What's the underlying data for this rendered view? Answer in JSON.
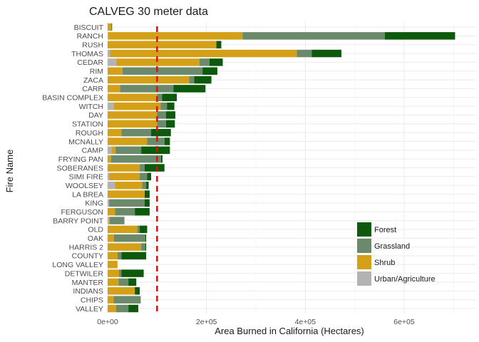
{
  "chart_data": {
    "type": "bar",
    "orientation": "horizontal",
    "stacked": true,
    "title": "CALVEG 30 meter data",
    "xlabel": "Area Burned in California (Hectares)",
    "ylabel": "Fire Name",
    "xlim": [
      0,
      740000
    ],
    "xticks": [
      0,
      200000,
      400000,
      600000
    ],
    "xtick_labels": [
      "0e+00",
      "2e+05",
      "4e+05",
      "6e+05"
    ],
    "reference_line": {
      "x": 100000,
      "color": "#ff0000",
      "style": "dashed"
    },
    "legend_position": "bottom-right",
    "grid": true,
    "categories": [
      "BISCUIT",
      "RANCH",
      "RUSH",
      "THOMAS",
      "CEDAR",
      "RIM",
      "ZACA",
      "CARR",
      "BASIN COMPLEX",
      "WITCH",
      "DAY",
      "STATION",
      "ROUGH",
      "MCNALLY",
      "CAMP",
      "FRYING PAN",
      "SOBERANES",
      "SIMI FIRE",
      "WOOLSEY",
      "LA BREA",
      "KING",
      "FERGUSON",
      "BARRY POINT",
      "OLD",
      "OAK",
      "HARRIS 2",
      "COUNTY",
      "LONG VALLEY",
      "DETWILER",
      "MANTER",
      "INDIANS",
      "CHIPS",
      "VALLEY"
    ],
    "series": [
      {
        "name": "Urban/Agriculture",
        "color": "#b3b3b3",
        "values": [
          0,
          1000,
          0,
          5000,
          18000,
          0,
          0,
          0,
          0,
          12000,
          0,
          0,
          0,
          0,
          8000,
          0,
          0,
          3000,
          15000,
          0,
          3000,
          0,
          2000,
          0,
          0,
          0,
          0,
          0,
          0,
          0,
          0,
          0,
          0
        ]
      },
      {
        "name": "Shrub",
        "color": "#d4a017",
        "values": [
          8000,
          272000,
          220000,
          378000,
          168000,
          30000,
          165000,
          25000,
          100000,
          95000,
          100000,
          100000,
          28000,
          80000,
          8000,
          7000,
          65000,
          62000,
          55000,
          75000,
          0,
          15000,
          2000,
          60000,
          13000,
          68000,
          20000,
          20000,
          23000,
          22000,
          55000,
          12000,
          17000
        ]
      },
      {
        "name": "Grassland",
        "color": "#6b8a6b",
        "values": [
          0,
          288000,
          0,
          30000,
          20000,
          162000,
          10000,
          108000,
          10000,
          13000,
          18000,
          18000,
          60000,
          35000,
          52000,
          101000,
          10000,
          15000,
          8000,
          0,
          72000,
          40000,
          30000,
          5000,
          63000,
          8000,
          8000,
          0,
          5000,
          20000,
          0,
          55000,
          25000
        ]
      },
      {
        "name": "Forest",
        "color": "#0d5a0d",
        "values": [
          1000,
          142000,
          10000,
          60000,
          27000,
          30000,
          35000,
          65000,
          30000,
          15000,
          19000,
          18000,
          40000,
          11000,
          58000,
          3000,
          40000,
          8000,
          5000,
          10000,
          10000,
          30000,
          0,
          15000,
          2000,
          2000,
          50000,
          0,
          45000,
          16000,
          10000,
          0,
          20000
        ]
      }
    ]
  }
}
